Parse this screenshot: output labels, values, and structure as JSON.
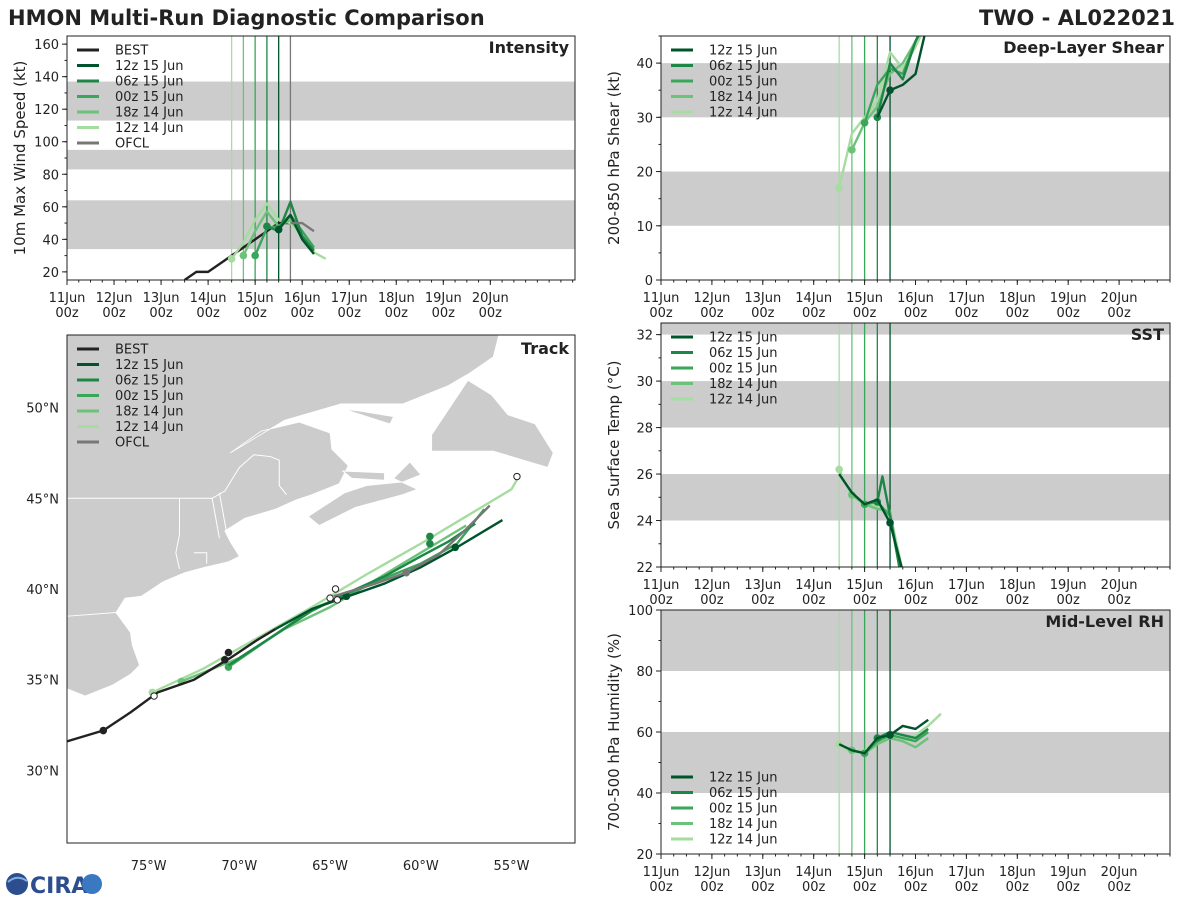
{
  "header": {
    "left": "HMON Multi-Run Diagnostic Comparison",
    "right": "TWO - AL022021"
  },
  "logo": {
    "text": "CIRA"
  },
  "time_ticks": [
    "11Jun",
    "12Jun",
    "13Jun",
    "14Jun",
    "15Jun",
    "16Jun",
    "17Jun",
    "18Jun",
    "19Jun",
    "20Jun"
  ],
  "time_subticks": [
    "00z",
    "00z",
    "00z",
    "00z",
    "00z",
    "00z",
    "00z",
    "00z",
    "00z",
    "00z"
  ],
  "colors": {
    "BEST": "#222222",
    "OFCL": "#777777",
    "12z 15 Jun": "#00532a",
    "06z 15 Jun": "#1e8646",
    "00z 15 Jun": "#3aa65a",
    "18z 14 Jun": "#6dc27a",
    "12z 14 Jun": "#a6dca0",
    "band": "#cccccc"
  },
  "chart_data": [
    {
      "id": "intensity",
      "type": "line",
      "title": "Intensity",
      "ylabel": "10m Max Wind Speed (kt)",
      "xlim": [
        0,
        10.8
      ],
      "ylim": [
        15,
        165
      ],
      "yticks": [
        20,
        40,
        60,
        80,
        100,
        120,
        140,
        160
      ],
      "bands": [
        [
          34,
          64
        ],
        [
          83,
          95
        ],
        [
          113,
          137
        ]
      ],
      "legend": [
        "BEST",
        "12z 15 Jun",
        "06z 15 Jun",
        "00z 15 Jun",
        "18z 14 Jun",
        "12z 14 Jun",
        "OFCL"
      ],
      "vlines": [
        {
          "x": 3.5,
          "name": "12z 14 Jun"
        },
        {
          "x": 3.75,
          "name": "18z 14 Jun"
        },
        {
          "x": 4.0,
          "name": "00z 15 Jun"
        },
        {
          "x": 4.25,
          "name": "06z 15 Jun"
        },
        {
          "x": 4.5,
          "name": "12z 15 Jun"
        },
        {
          "x": 4.75,
          "name": "OFCL"
        }
      ],
      "series": [
        {
          "name": "BEST",
          "x": [
            2.5,
            2.75,
            3.0,
            3.25,
            3.5,
            3.75,
            4.0,
            4.25,
            4.5,
            4.75
          ],
          "y": [
            15,
            20,
            20,
            25,
            30,
            35,
            40,
            45,
            50,
            50
          ]
        },
        {
          "name": "12z 14 Jun",
          "x": [
            3.5,
            3.75,
            4.0,
            4.25,
            4.5,
            4.75,
            5.0,
            5.25,
            5.5
          ],
          "y": [
            28,
            38,
            52,
            62,
            52,
            50,
            42,
            32,
            28
          ],
          "marker": 3.5
        },
        {
          "name": "18z 14 Jun",
          "x": [
            3.75,
            4.0,
            4.25,
            4.5,
            4.75,
            5.0,
            5.25
          ],
          "y": [
            30,
            45,
            57,
            48,
            52,
            42,
            34
          ],
          "marker": 3.75
        },
        {
          "name": "00z 15 Jun",
          "x": [
            4.0,
            4.25,
            4.5,
            4.75,
            5.0,
            5.25
          ],
          "y": [
            30,
            47,
            48,
            55,
            45,
            35
          ],
          "marker": 4.0
        },
        {
          "name": "06z 15 Jun",
          "x": [
            4.25,
            4.5,
            4.75,
            5.0,
            5.25
          ],
          "y": [
            48,
            45,
            63,
            42,
            33
          ],
          "marker": 4.25
        },
        {
          "name": "12z 15 Jun",
          "x": [
            4.5,
            4.75,
            5.0,
            5.25
          ],
          "y": [
            46,
            55,
            40,
            31
          ],
          "marker": 4.5
        },
        {
          "name": "OFCL",
          "x": [
            4.75,
            5.0,
            5.25
          ],
          "y": [
            50,
            50,
            45
          ]
        }
      ]
    },
    {
      "id": "shear",
      "type": "line",
      "title": "Deep-Layer Shear",
      "ylabel": "200-850 hPa Shear (kt)",
      "xlim": [
        0,
        10
      ],
      "ylim": [
        0,
        45
      ],
      "yticks": [
        0,
        10,
        20,
        30,
        40
      ],
      "bands": [
        [
          10,
          20
        ],
        [
          30,
          40
        ]
      ],
      "legend": [
        "12z 15 Jun",
        "06z 15 Jun",
        "00z 15 Jun",
        "18z 14 Jun",
        "12z 14 Jun"
      ],
      "vlines": [
        {
          "x": 3.5,
          "name": "12z 14 Jun"
        },
        {
          "x": 3.75,
          "name": "18z 14 Jun"
        },
        {
          "x": 4.0,
          "name": "00z 15 Jun"
        },
        {
          "x": 4.25,
          "name": "06z 15 Jun"
        },
        {
          "x": 4.5,
          "name": "12z 15 Jun"
        }
      ],
      "series": [
        {
          "name": "12z 14 Jun",
          "x": [
            3.5,
            3.75,
            4.0,
            4.25,
            4.5,
            4.75,
            5.0,
            5.2
          ],
          "y": [
            17,
            27,
            30,
            33,
            42,
            39,
            43,
            47
          ],
          "marker": 3.5
        },
        {
          "name": "18z 14 Jun",
          "x": [
            3.75,
            4.0,
            4.25,
            4.5,
            4.75,
            5.0,
            5.2
          ],
          "y": [
            24,
            29,
            32,
            38,
            40,
            44,
            47
          ],
          "marker": 3.75
        },
        {
          "name": "00z 15 Jun",
          "x": [
            4.0,
            4.25,
            4.5,
            4.75,
            5.0,
            5.15
          ],
          "y": [
            29,
            36,
            39,
            38,
            44,
            47
          ],
          "marker": 4.0
        },
        {
          "name": "06z 15 Jun",
          "x": [
            4.25,
            4.5,
            4.75,
            5.0,
            5.15
          ],
          "y": [
            30,
            40,
            37,
            44,
            47
          ],
          "marker": 4.25
        },
        {
          "name": "12z 15 Jun",
          "x": [
            4.25,
            4.5,
            4.75,
            5.0,
            5.2
          ],
          "y": [
            30,
            35,
            36,
            38,
            46
          ],
          "marker": 4.5
        }
      ]
    },
    {
      "id": "sst",
      "type": "line",
      "title": "SST",
      "ylabel": "Sea Surface Temp (°C)",
      "xlim": [
        0,
        10
      ],
      "ylim": [
        22,
        32.5
      ],
      "yticks": [
        22,
        24,
        26,
        28,
        30,
        32
      ],
      "bands": [
        [
          24,
          26
        ],
        [
          28,
          30
        ],
        [
          32,
          32.5
        ]
      ],
      "legend": [
        "12z 15 Jun",
        "06z 15 Jun",
        "00z 15 Jun",
        "18z 14 Jun",
        "12z 14 Jun"
      ],
      "vlines": [
        {
          "x": 3.5,
          "name": "12z 14 Jun"
        },
        {
          "x": 3.75,
          "name": "18z 14 Jun"
        },
        {
          "x": 4.0,
          "name": "00z 15 Jun"
        },
        {
          "x": 4.25,
          "name": "06z 15 Jun"
        },
        {
          "x": 4.5,
          "name": "12z 15 Jun"
        }
      ],
      "series": [
        {
          "name": "12z 14 Jun",
          "x": [
            3.5,
            3.75,
            4.0,
            4.25,
            4.5,
            4.75
          ],
          "y": [
            26.2,
            25.0,
            24.8,
            24.6,
            24.3,
            21.8
          ],
          "marker": 3.5
        },
        {
          "name": "18z 14 Jun",
          "x": [
            3.75,
            4.0,
            4.25,
            4.5,
            4.7
          ],
          "y": [
            25.1,
            24.7,
            24.5,
            24.4,
            21.8
          ],
          "marker": 3.75
        },
        {
          "name": "00z 15 Jun",
          "x": [
            4.0,
            4.25,
            4.5,
            4.7
          ],
          "y": [
            24.7,
            24.8,
            24.2,
            21.8
          ],
          "marker": 4.0
        },
        {
          "name": "06z 15 Jun",
          "x": [
            4.25,
            4.35,
            4.5,
            4.7
          ],
          "y": [
            24.8,
            25.9,
            24.2,
            21.8
          ],
          "marker": 4.25
        },
        {
          "name": "12z 15 Jun",
          "x": [
            3.5,
            3.75,
            4.0,
            4.25,
            4.5,
            4.75
          ],
          "y": [
            26.0,
            25.2,
            24.7,
            24.9,
            23.9,
            21.8
          ],
          "marker": 4.5
        }
      ]
    },
    {
      "id": "rh",
      "type": "line",
      "title": "Mid-Level RH",
      "ylabel": "700-500 hPa Humidity (%)",
      "xlim": [
        0,
        10
      ],
      "ylim": [
        20,
        100
      ],
      "yticks": [
        20,
        40,
        60,
        80,
        100
      ],
      "bands": [
        [
          40,
          60
        ],
        [
          80,
          100
        ]
      ],
      "legend": [
        "12z 15 Jun",
        "06z 15 Jun",
        "00z 15 Jun",
        "18z 14 Jun",
        "12z 14 Jun"
      ],
      "vlines": [
        {
          "x": 3.5,
          "name": "12z 14 Jun"
        },
        {
          "x": 3.75,
          "name": "18z 14 Jun"
        },
        {
          "x": 4.0,
          "name": "00z 15 Jun"
        },
        {
          "x": 4.25,
          "name": "06z 15 Jun"
        },
        {
          "x": 4.5,
          "name": "12z 15 Jun"
        }
      ],
      "series": [
        {
          "name": "12z 14 Jun",
          "x": [
            3.5,
            3.75,
            4.0,
            4.25,
            4.5,
            4.75,
            5.0,
            5.25,
            5.5
          ],
          "y": [
            56,
            53,
            54,
            57,
            58,
            57,
            59,
            62,
            66
          ],
          "marker": 3.5
        },
        {
          "name": "18z 14 Jun",
          "x": [
            3.75,
            4.0,
            4.25,
            4.5,
            4.75,
            5.0,
            5.25
          ],
          "y": [
            54,
            53,
            56,
            58,
            57,
            55,
            58
          ],
          "marker": 3.75
        },
        {
          "name": "00z 15 Jun",
          "x": [
            4.0,
            4.25,
            4.5,
            4.75,
            5.0,
            5.25
          ],
          "y": [
            53,
            57,
            59,
            58,
            57,
            60
          ],
          "marker": 4.0
        },
        {
          "name": "06z 15 Jun",
          "x": [
            4.25,
            4.5,
            4.75,
            5.0,
            5.25
          ],
          "y": [
            58,
            60,
            59,
            58,
            61
          ],
          "marker": 4.25
        },
        {
          "name": "12z 15 Jun",
          "x": [
            3.5,
            3.75,
            4.0,
            4.25,
            4.5,
            4.75,
            5.0,
            5.25
          ],
          "y": [
            56,
            54,
            53,
            58,
            59,
            62,
            61,
            64
          ],
          "marker": 4.5
        }
      ]
    },
    {
      "id": "track",
      "type": "line",
      "title": "Track",
      "xlabels": [
        "75°W",
        "70°W",
        "65°W",
        "60°W",
        "55°W"
      ],
      "xticks": [
        -75,
        -70,
        -65,
        -60,
        -55
      ],
      "ylabels": [
        "30°N",
        "35°N",
        "40°N",
        "45°N",
        "50°N"
      ],
      "yticks": [
        30,
        35,
        40,
        45,
        50
      ],
      "xlim": [
        -79.5,
        -51.5
      ],
      "ylim": [
        26,
        54
      ],
      "legend": [
        "BEST",
        "12z 15 Jun",
        "06z 15 Jun",
        "00z 15 Jun",
        "18z 14 Jun",
        "12z 14 Jun",
        "OFCL"
      ],
      "series": [
        {
          "name": "BEST",
          "x": [
            -79.5,
            -77.5,
            -76.0,
            -74.5,
            -72.5,
            -70.5,
            -69.0,
            -68.0
          ],
          "y": [
            31.6,
            32.2,
            33.2,
            34.3,
            35.0,
            36.2,
            37.2,
            37.8
          ],
          "markers": [
            [
              -77.5,
              32.2
            ],
            [
              -70.8,
              36.1
            ],
            [
              -70.6,
              36.5
            ]
          ]
        },
        {
          "name": "12z 15 Jun",
          "x": [
            -68.0,
            -66.0,
            -64.0,
            -62.0,
            -60.0,
            -58.0,
            -55.5
          ],
          "y": [
            37.8,
            38.9,
            39.6,
            40.3,
            41.2,
            42.3,
            43.8
          ],
          "markers": [
            [
              -64.1,
              39.6
            ],
            [
              -58.1,
              42.3
            ]
          ]
        },
        {
          "name": "06z 15 Jun",
          "x": [
            -70.6,
            -68.0,
            -66.0,
            -64.0,
            -62.0,
            -60.0,
            -58.5,
            -57.0
          ],
          "y": [
            35.8,
            37.5,
            38.8,
            39.8,
            40.7,
            41.8,
            42.6,
            43.6
          ],
          "markers": [
            [
              -59.5,
              42.5
            ],
            [
              -59.5,
              42.9
            ]
          ]
        },
        {
          "name": "00z 15 Jun",
          "x": [
            -70.6,
            -68.0,
            -66.0,
            -64.0,
            -62.0,
            -60.0,
            -58.0,
            -56.5
          ],
          "y": [
            35.7,
            37.5,
            38.9,
            39.7,
            40.6,
            41.4,
            42.5,
            44.4
          ],
          "markers": [
            [
              -70.6,
              35.7
            ]
          ]
        },
        {
          "name": "18z 14 Jun",
          "x": [
            -73.2,
            -70.0,
            -67.5,
            -65.0,
            -62.5,
            -60.0,
            -57.5
          ],
          "y": [
            34.9,
            36.2,
            37.8,
            39.0,
            40.5,
            42.0,
            43.5
          ],
          "markers": [
            [
              -73.2,
              34.9
            ]
          ]
        },
        {
          "name": "12z 14 Jun",
          "x": [
            -74.8,
            -72.0,
            -69.0,
            -66.0,
            -63.0,
            -60.0,
            -57.5,
            -55.0,
            -54.6
          ],
          "y": [
            34.3,
            35.6,
            37.3,
            39.0,
            40.8,
            42.5,
            44.0,
            45.5,
            46.2
          ],
          "markers": [
            [
              -74.8,
              34.3
            ]
          ]
        },
        {
          "name": "OFCL",
          "x": [
            -64.8,
            -62.5,
            -60.8,
            -59.0,
            -57.5,
            -56.2
          ],
          "y": [
            39.6,
            40.3,
            40.9,
            41.9,
            43.3,
            44.6
          ],
          "markers": [
            [
              -60.8,
              40.9
            ]
          ]
        }
      ],
      "open_markers": [
        [
          -74.7,
          34.1
        ],
        [
          -65.0,
          39.5
        ],
        [
          -64.7,
          40.0
        ],
        [
          -64.6,
          39.4
        ],
        [
          -54.7,
          46.2
        ]
      ]
    }
  ]
}
